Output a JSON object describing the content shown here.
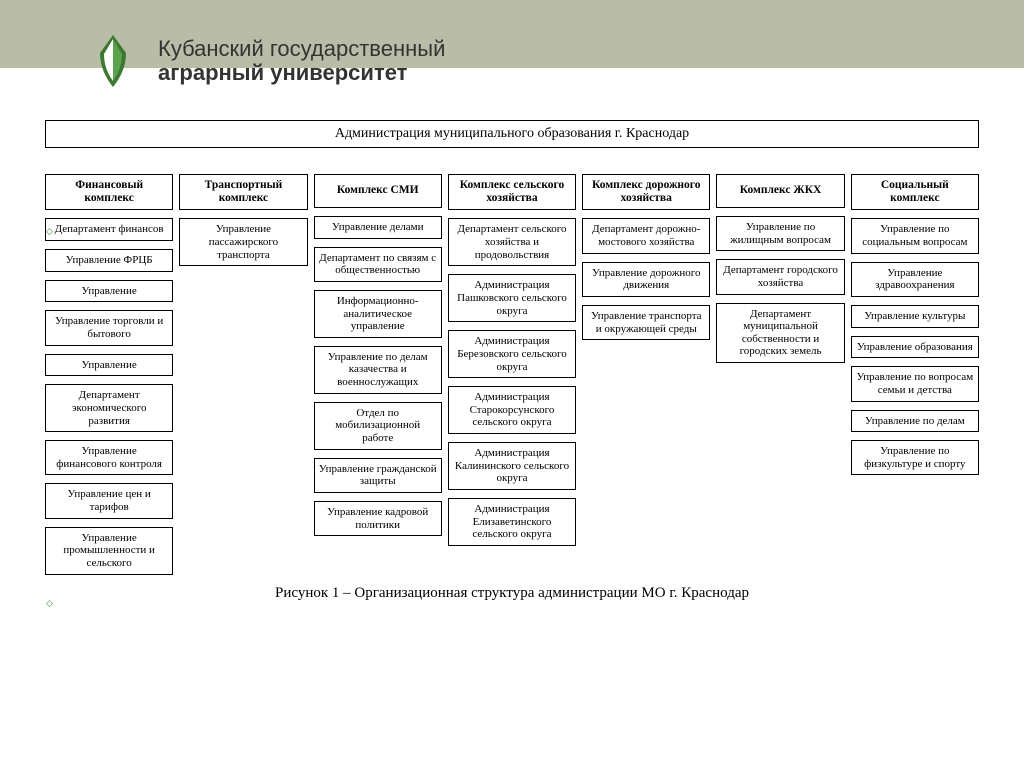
{
  "header": {
    "line1": "Кубанский государственный",
    "line2": "аграрный университет",
    "logo_color": "#3a7a2f"
  },
  "chart": {
    "root": "Администрация муниципального образования г. Краснодар",
    "caption": "Рисунок 1 – Организационная структура администрации МО г. Краснодар",
    "columns": [
      {
        "head": "Финансовый комплекс",
        "items": [
          "Департамент финансов",
          "Управление ФРЦБ",
          "Управление",
          "Управление торговли и бытового",
          "Управление",
          "Департамент экономического развития",
          "Управление финансового контроля",
          "Управление цен и тарифов",
          "Управление промышленности и сельского"
        ]
      },
      {
        "head": "Транспортный комплекс",
        "items": [
          "Управление пассажирского транспорта"
        ]
      },
      {
        "head": "Комплекс СМИ",
        "items": [
          "Управление делами",
          "Департамент по связям с общественностью",
          "Информационно-аналитическое управление",
          "Управление по делам казачества и военнослужащих",
          "Отдел по мобилизационной работе",
          "Управление гражданской защиты",
          "Управление кадровой политики"
        ]
      },
      {
        "head": "Комплекс сельского хозяйства",
        "items": [
          "Департамент сельского хозяйства и продовольствия",
          "Администрация Пашковского сельского округа",
          "Администрация Березовского сельского округа",
          "Администрация Старокорсунского сельского округа",
          "Администрация Калининского сельского округа",
          "Администрация Елизаветинского сельского округа"
        ]
      },
      {
        "head": "Комплекс дорожного хозяйства",
        "items": [
          "Департамент дорожно-мостового хозяйства",
          "Управление дорожного движения",
          "Управление транспорта и окружающей среды"
        ]
      },
      {
        "head": "Комплекс ЖКХ",
        "items": [
          "Управление по жилищным вопросам",
          "Департамент городского хозяйства",
          "Департамент муниципальной собственности и городских земель"
        ]
      },
      {
        "head": "Социальный комплекс",
        "items": [
          "Управление по социальным вопросам",
          "Управление здравоохранения",
          "Управление культуры",
          "Управление образования",
          "Управление по вопросам семьи и детства",
          "Управление по делам",
          "Управление по физкультуре и спорту"
        ]
      }
    ]
  },
  "style": {
    "border_color": "#000000",
    "bg_color": "#ffffff",
    "band_color": "#b9bda8",
    "text_color": "#000000"
  }
}
